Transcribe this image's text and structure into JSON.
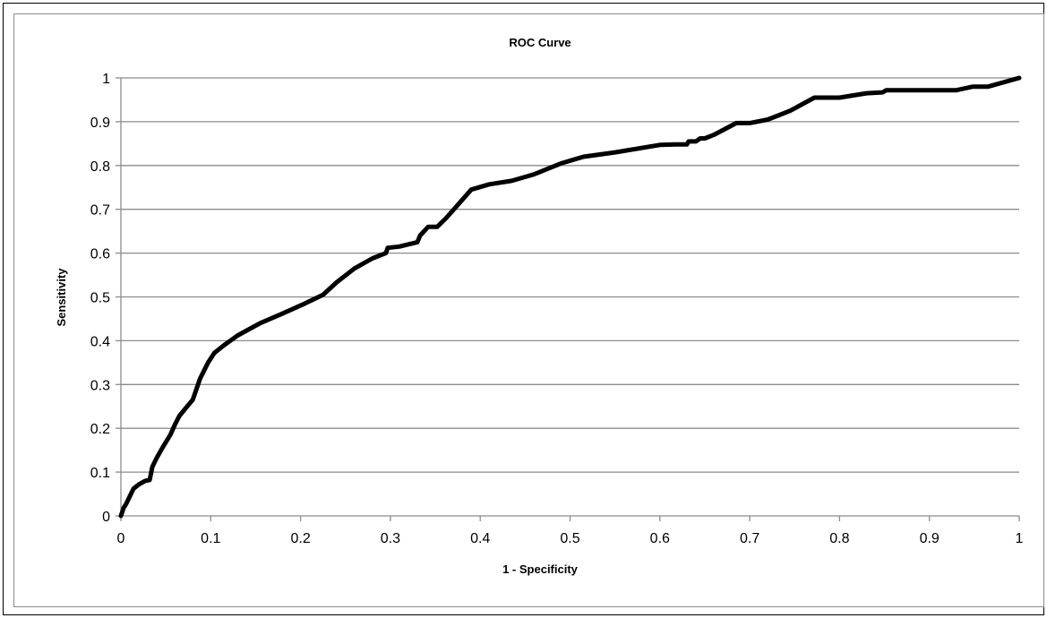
{
  "chart_data": {
    "type": "line",
    "title": "ROC Curve",
    "xlabel": "1 - Specificity",
    "ylabel": "Sensitivity",
    "xlim": [
      0,
      1
    ],
    "ylim": [
      0,
      1
    ],
    "x_ticks": [
      "0",
      "0.1",
      "0.2",
      "0.3",
      "0.4",
      "0.5",
      "0.6",
      "0.7",
      "0.8",
      "0.9",
      "1"
    ],
    "y_ticks": [
      "0",
      "0.1",
      "0.2",
      "0.3",
      "0.4",
      "0.5",
      "0.6",
      "0.7",
      "0.8",
      "0.9",
      "1"
    ],
    "grid": "horizontal",
    "legend": "none",
    "colors": {
      "line": "#000000",
      "grid": "#8c8c8c",
      "border": "#8c8c8c"
    },
    "series": [
      {
        "x": [
          0,
          0.003,
          0.006,
          0.01,
          0.014,
          0.02,
          0.027,
          0.032,
          0.035,
          0.04,
          0.047,
          0.055,
          0.06,
          0.065,
          0.073,
          0.08,
          0.088,
          0.097,
          0.104,
          0.115,
          0.13,
          0.155,
          0.18,
          0.205,
          0.225,
          0.24,
          0.26,
          0.28,
          0.295,
          0.297,
          0.31,
          0.32,
          0.33,
          0.333,
          0.342,
          0.352,
          0.362,
          0.375,
          0.39,
          0.41,
          0.435,
          0.46,
          0.49,
          0.515,
          0.55,
          0.6,
          0.618,
          0.63,
          0.632,
          0.64,
          0.645,
          0.65,
          0.66,
          0.685,
          0.7,
          0.72,
          0.745,
          0.772,
          0.8,
          0.83,
          0.848,
          0.852,
          0.9,
          0.93,
          0.948,
          0.965,
          1.0
        ],
        "y": [
          0,
          0.018,
          0.028,
          0.045,
          0.062,
          0.072,
          0.08,
          0.082,
          0.112,
          0.133,
          0.158,
          0.185,
          0.208,
          0.228,
          0.248,
          0.265,
          0.313,
          0.35,
          0.372,
          0.39,
          0.412,
          0.44,
          0.462,
          0.485,
          0.505,
          0.533,
          0.565,
          0.588,
          0.6,
          0.612,
          0.615,
          0.62,
          0.625,
          0.64,
          0.66,
          0.66,
          0.68,
          0.71,
          0.745,
          0.757,
          0.765,
          0.78,
          0.805,
          0.82,
          0.83,
          0.847,
          0.848,
          0.848,
          0.855,
          0.855,
          0.862,
          0.862,
          0.87,
          0.897,
          0.897,
          0.905,
          0.925,
          0.955,
          0.955,
          0.965,
          0.967,
          0.972,
          0.972,
          0.972,
          0.98,
          0.98,
          1.0
        ]
      }
    ]
  }
}
